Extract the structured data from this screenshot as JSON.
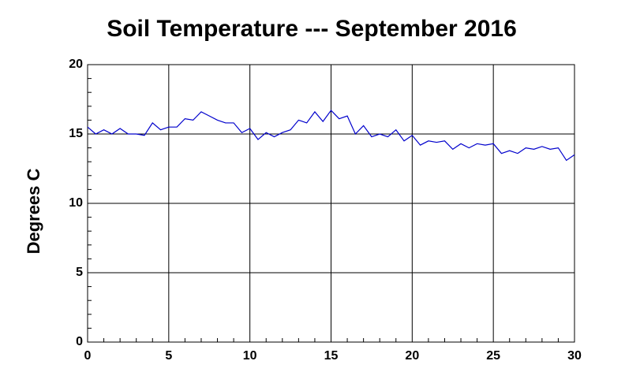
{
  "chart_data": {
    "type": "line",
    "title": "Soil Temperature --- September 2016",
    "y_label": "Degrees C",
    "x": [
      0,
      0.5,
      1,
      1.5,
      2,
      2.5,
      3,
      3.5,
      4,
      4.5,
      5,
      5.5,
      6,
      6.5,
      7,
      7.5,
      8,
      8.5,
      9,
      9.5,
      10,
      10.5,
      11,
      11.5,
      12,
      12.5,
      13,
      13.5,
      14,
      14.5,
      15,
      15.5,
      16,
      16.5,
      17,
      17.5,
      18,
      18.5,
      19,
      19.5,
      20,
      20.5,
      21,
      21.5,
      22,
      22.5,
      23,
      23.5,
      24,
      24.5,
      25,
      25.5,
      26,
      26.5,
      27,
      27.5,
      28,
      28.5,
      29,
      29.5,
      30
    ],
    "series": [
      {
        "color": "#0000cc",
        "values": [
          15.5,
          15.0,
          15.3,
          15.0,
          15.4,
          15.0,
          15.0,
          14.9,
          15.8,
          15.3,
          15.5,
          15.5,
          16.1,
          16.0,
          16.6,
          16.3,
          16.0,
          15.8,
          15.8,
          15.1,
          15.4,
          14.6,
          15.1,
          14.8,
          15.1,
          15.3,
          16.0,
          15.8,
          16.6,
          15.9,
          16.7,
          16.1,
          16.3,
          15.0,
          15.6,
          14.8,
          15.0,
          14.8,
          15.3,
          14.5,
          14.9,
          14.2,
          14.5,
          14.4,
          14.5,
          13.9,
          14.3,
          14.0,
          14.3,
          14.2,
          14.3,
          13.6,
          13.8,
          13.6,
          14.0,
          13.9,
          14.1,
          13.9,
          14.0,
          13.1,
          13.5
        ]
      }
    ],
    "xlim": [
      0,
      30
    ],
    "xticks": [
      0,
      5,
      10,
      15,
      20,
      25,
      30
    ],
    "ylim": [
      0,
      20
    ],
    "yticks": [
      0,
      5,
      10,
      15,
      20
    ],
    "grid": true
  }
}
